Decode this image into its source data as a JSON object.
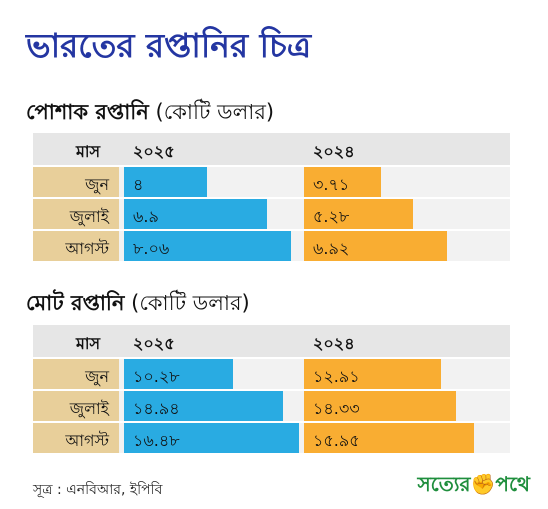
{
  "title": "ভারতের রপ্তানির চিত্র",
  "source": "সূত্র : এনবিআর, ইপিবি",
  "logo": {
    "part1": "সত্যের",
    "part2": "পথে",
    "fist_glyph": "✊",
    "color_green": "#1f8e3d",
    "color_red": "#d4262b"
  },
  "colors": {
    "bar_2025": "#29abe2",
    "bar_2024": "#f9ad32",
    "month_bg": "#e8cf9a",
    "header_bg": "#e6e6e6",
    "title": "#2436a2"
  },
  "chart_data": [
    {
      "type": "bar",
      "title": "পোশাক রপ্তানি",
      "unit": "(কোটি ডলার)",
      "header": {
        "month": "মাস",
        "col1": "২০২৫",
        "col2": "২০২৪"
      },
      "categories": [
        "জুন",
        "জুলাই",
        "আগস্ট"
      ],
      "series": [
        {
          "name": "২০২৫",
          "values": [
            4,
            6.9,
            8.06
          ],
          "labels": [
            "৪",
            "৬.৯",
            "৮.০৬"
          ]
        },
        {
          "name": "২০২৪",
          "values": [
            3.71,
            5.28,
            6.92
          ],
          "labels": [
            "৩.৭১",
            "৫.২৮",
            "৬.৯২"
          ]
        }
      ],
      "xlim": [
        0,
        9
      ]
    },
    {
      "type": "bar",
      "title": "মোট রপ্তানি",
      "unit": "(কোটি ডলার)",
      "header": {
        "month": "মাস",
        "col1": "২০২৫",
        "col2": "২০২৪"
      },
      "categories": [
        "জুন",
        "জুলাই",
        "আগস্ট"
      ],
      "series": [
        {
          "name": "২০২৫",
          "values": [
            10.28,
            14.94,
            16.48
          ],
          "labels": [
            "১০.২৮",
            "১৪.৯৪",
            "১৬.৪৮"
          ]
        },
        {
          "name": "২০২৪",
          "values": [
            12.91,
            14.33,
            15.95
          ],
          "labels": [
            "১২.৯১",
            "১৪.৩৩",
            "১৫.৯৫"
          ]
        }
      ],
      "xlim": [
        0,
        17.5
      ]
    }
  ]
}
